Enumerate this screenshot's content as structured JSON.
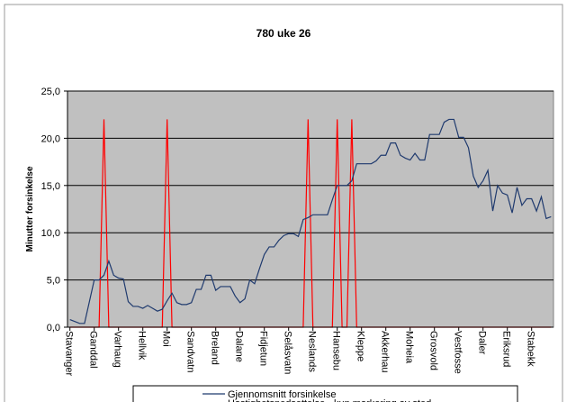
{
  "chart_data": {
    "type": "line",
    "title": "780 uke 26",
    "y_label": "Minutter forsinkelse",
    "categories": [
      "Stavanger",
      null,
      null,
      null,
      null,
      "Ganddal",
      null,
      null,
      null,
      null,
      "Varhaug",
      null,
      null,
      null,
      null,
      "Hellvik",
      null,
      null,
      null,
      null,
      "Moi",
      null,
      null,
      null,
      null,
      "Sandvatn",
      null,
      null,
      null,
      null,
      "Breland",
      null,
      null,
      null,
      null,
      "Dalane",
      null,
      null,
      null,
      null,
      "Fidjetun",
      null,
      null,
      null,
      null,
      "Selåsvatn",
      null,
      null,
      null,
      null,
      "Neslands",
      null,
      null,
      null,
      null,
      "Hansebu",
      null,
      null,
      null,
      null,
      "Kleppe",
      null,
      null,
      null,
      null,
      "Akkerhau",
      null,
      null,
      null,
      null,
      "Moheia",
      null,
      null,
      null,
      null,
      "Grosvold",
      null,
      null,
      null,
      null,
      "Vestfosse",
      null,
      null,
      null,
      null,
      "Daler",
      null,
      null,
      null,
      null,
      "Eriksrud",
      null,
      null,
      null,
      null,
      "Stabekk",
      null,
      null,
      null,
      null
    ],
    "series": [
      {
        "name": "Gjennomsnitt forsinkelse",
        "color": "#1f3a6e",
        "values": [
          0.8,
          0.6,
          0.4,
          0.4,
          2.7,
          5.0,
          5.0,
          5.5,
          7.0,
          5.5,
          5.2,
          5.1,
          2.7,
          2.2,
          2.2,
          2.0,
          2.3,
          2.0,
          1.7,
          1.9,
          2.8,
          3.6,
          2.6,
          2.4,
          2.4,
          2.6,
          4.0,
          4.0,
          5.5,
          5.5,
          3.9,
          4.3,
          4.3,
          4.3,
          3.3,
          2.6,
          3.0,
          5.0,
          4.6,
          6.2,
          7.7,
          8.5,
          8.5,
          9.2,
          9.7,
          9.9,
          9.9,
          9.6,
          11.4,
          11.6,
          11.9,
          11.9,
          11.9,
          11.9,
          13.5,
          15.0,
          15.0,
          15.0,
          15.5,
          17.3,
          17.3,
          17.3,
          17.3,
          17.6,
          18.2,
          18.2,
          19.5,
          19.5,
          18.2,
          17.9,
          17.7,
          18.4,
          17.7,
          17.7,
          20.4,
          20.4,
          20.4,
          21.7,
          22.0,
          22.0,
          20.1,
          20.1,
          19.0,
          16.0,
          14.8,
          15.5,
          16.6,
          12.3,
          15.0,
          14.2,
          14.0,
          12.1,
          14.8,
          12.9,
          13.6,
          13.6,
          12.3,
          13.8,
          11.5,
          11.7
        ]
      },
      {
        "name": "Hastighetsnedsettelse - kun markering av sted",
        "color": "#ff0000",
        "values": [
          0,
          0,
          0,
          0,
          0,
          0,
          0,
          22,
          0,
          0,
          0,
          0,
          0,
          0,
          0,
          0,
          0,
          0,
          0,
          0,
          22,
          0,
          0,
          0,
          0,
          0,
          0,
          0,
          0,
          0,
          0,
          0,
          0,
          0,
          0,
          0,
          0,
          0,
          0,
          0,
          0,
          0,
          0,
          0,
          0,
          0,
          0,
          0,
          0,
          22,
          0,
          0,
          0,
          0,
          0,
          22,
          0,
          0,
          22,
          0,
          0,
          0,
          0,
          0,
          0,
          0,
          0,
          0,
          0,
          0,
          0,
          0,
          0,
          0,
          0,
          0,
          0,
          0,
          0,
          0,
          0,
          0,
          0,
          0,
          0,
          0,
          0,
          0,
          0,
          0,
          0,
          0,
          0,
          0,
          0,
          0,
          0,
          0,
          0,
          0
        ]
      }
    ],
    "ylim": [
      0,
      25
    ],
    "yticks": [
      {
        "value": 0,
        "label": "0,0"
      },
      {
        "value": 5,
        "label": "5,0"
      },
      {
        "value": 10,
        "label": "10,0"
      },
      {
        "value": 15,
        "label": "15,0"
      },
      {
        "value": 20,
        "label": "20,0"
      },
      {
        "value": 25,
        "label": "25,0"
      }
    ],
    "grid": true,
    "legend": "bottom",
    "plot_background": "#c0c0c0"
  }
}
